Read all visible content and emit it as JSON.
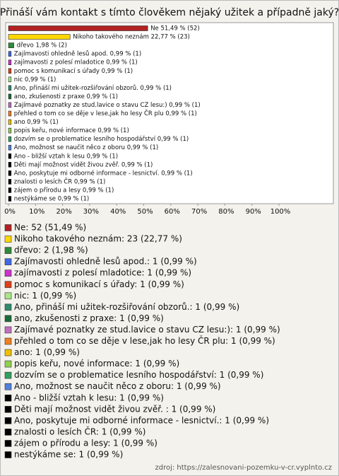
{
  "chart_data": {
    "type": "hbar",
    "title": "Přináší vám kontakt s tímto člověkem nějaký užitek a případně jaký?",
    "categories": [
      "Ne",
      "Nikoho takového neznám",
      "dřevo",
      "Zajímavosti ohledně lesů apod.",
      "zajímavosti z polesí mladotice",
      "pomoc s komunikací s úřady",
      "nic",
      "Ano, přináší mi užitek-rozšiřování obzorů.",
      "ano, zkušenosti z praxe",
      "Zajímavé poznatky ze stud.lavice o stavu CZ lesu:)",
      "přehled o tom co se děje v lese,jak ho lesy ČR plu",
      "ano",
      "popis keřu, nové informace",
      "dozvím se o problematice lesního hospodářství",
      "Ano, možnost se naučit něco z oboru",
      "Ano - bližší vztah k lesu",
      "Děti mají možnost vidět živou zvěř.",
      "Ano, poskytuje mi odborné informace - lesnictví.",
      "znalosti o lesích ČR",
      "zájem o přírodu a lesy",
      "nestýkáme se"
    ],
    "values": [
      51.49,
      22.77,
      1.98,
      0.99,
      0.99,
      0.99,
      0.99,
      0.99,
      0.99,
      0.99,
      0.99,
      0.99,
      0.99,
      0.99,
      0.99,
      0.99,
      0.99,
      0.99,
      0.99,
      0.99,
      0.99
    ],
    "value_labels": [
      "Ne 51,49 % (52)",
      "Nikoho takového neznám 22,77 % (23)",
      "dřevo 1,98 % (2)",
      "Zajímavosti ohledně lesů apod. 0,99 % (1)",
      "zajímavosti z polesí mladotice 0,99 % (1)",
      "pomoc s komunikací s úřady 0,99 % (1)",
      "nic 0,99 % (1)",
      "Ano, přináší mi užitek-rozšiřování obzorů. 0,99 % (1)",
      "ano, zkušenosti z praxe 0,99 % (1)",
      "Zajímavé poznatky ze stud.lavice o stavu CZ lesu:) 0,99 % (1)",
      "přehled o tom co se děje v lese,jak ho lesy ČR plu 0,99 % (1)",
      "ano 0,99 % (1)",
      "popis keřu, nové informace 0,99 % (1)",
      "dozvím se o problematice lesního hospodářství 0,99 % (1)",
      "Ano, možnost se naučit něco z oboru 0,99 % (1)",
      "Ano - bližší vztah k lesu 0,99 % (1)",
      "Děti mají možnost vidět živou zvěř.  0,99 % (1)",
      "Ano, poskytuje mi odborné informace - lesnictví. 0,99 % (1)",
      "znalosti o lesích ČR 0,99 % (1)",
      "zájem o přírodu a lesy 0,99 % (1)",
      "nestýkáme se 0,99 % (1)"
    ],
    "legend_labels": [
      "Ne: 52 (51,49 %)",
      "Nikoho takového neznám: 23 (22,77 %)",
      "dřevo: 2 (1,98 %)",
      "Zajímavosti ohledně lesů apod.: 1 (0,99 %)",
      "zajímavosti z polesí mladotice: 1 (0,99 %)",
      "pomoc s komunikací s úřady: 1 (0,99 %)",
      "nic: 1 (0,99 %)",
      "Ano, přináší mi užitek-rozšiřování obzorů.: 1 (0,99 %)",
      "ano, zkušenosti z praxe: 1 (0,99 %)",
      "Zajímavé poznatky ze stud.lavice o stavu CZ lesu:): 1 (0,99 %)",
      "přehled o tom co se děje v lese,jak ho lesy ČR plu: 1 (0,99 %)",
      "ano: 1 (0,99 %)",
      "popis keřu, nové informace: 1 (0,99 %)",
      "dozvím se o problematice lesního hospodářství: 1 (0,99 %)",
      "Ano, možnost se naučit něco z oboru: 1 (0,99 %)",
      "Ano - bližší vztah k lesu: 1 (0,99 %)",
      "Děti mají možnost vidět živou zvěř. : 1 (0,99 %)",
      "Ano, poskytuje mi odborné informace - lesnictví.: 1 (0,99 %)",
      "znalosti o lesích ČR: 1 (0,99 %)",
      "zájem o přírodu a lesy: 1 (0,99 %)",
      "nestýkáme se: 1 (0,99 %)"
    ],
    "colors": [
      "#b22222",
      "#ffd700",
      "#2e8b3a",
      "#4169e1",
      "#cc33cc",
      "#e0401a",
      "#a8e488",
      "#2e8b6f",
      "#1a6b3a",
      "#c070c0",
      "#f08020",
      "#f0c000",
      "#90d050",
      "#30a060",
      "#5080e0",
      "#000000",
      "#000000",
      "#000000",
      "#000000",
      "#000000",
      "#000000"
    ],
    "xlim": [
      0,
      100
    ],
    "xticks": [
      {
        "value": 0,
        "label": "0%"
      },
      {
        "value": 10,
        "label": "10%"
      },
      {
        "value": 20,
        "label": "20%"
      },
      {
        "value": 30,
        "label": "30%"
      },
      {
        "value": 40,
        "label": "40%"
      },
      {
        "value": 50,
        "label": "50%"
      },
      {
        "value": 60,
        "label": "60%"
      },
      {
        "value": 70,
        "label": "70%"
      },
      {
        "value": 80,
        "label": "80%"
      },
      {
        "value": 90,
        "label": "90%"
      },
      {
        "value": 100,
        "label": "100%"
      }
    ],
    "source": "zdroj: https://zalesnovani-pozemku-v-cr.vyplnto.cz"
  }
}
